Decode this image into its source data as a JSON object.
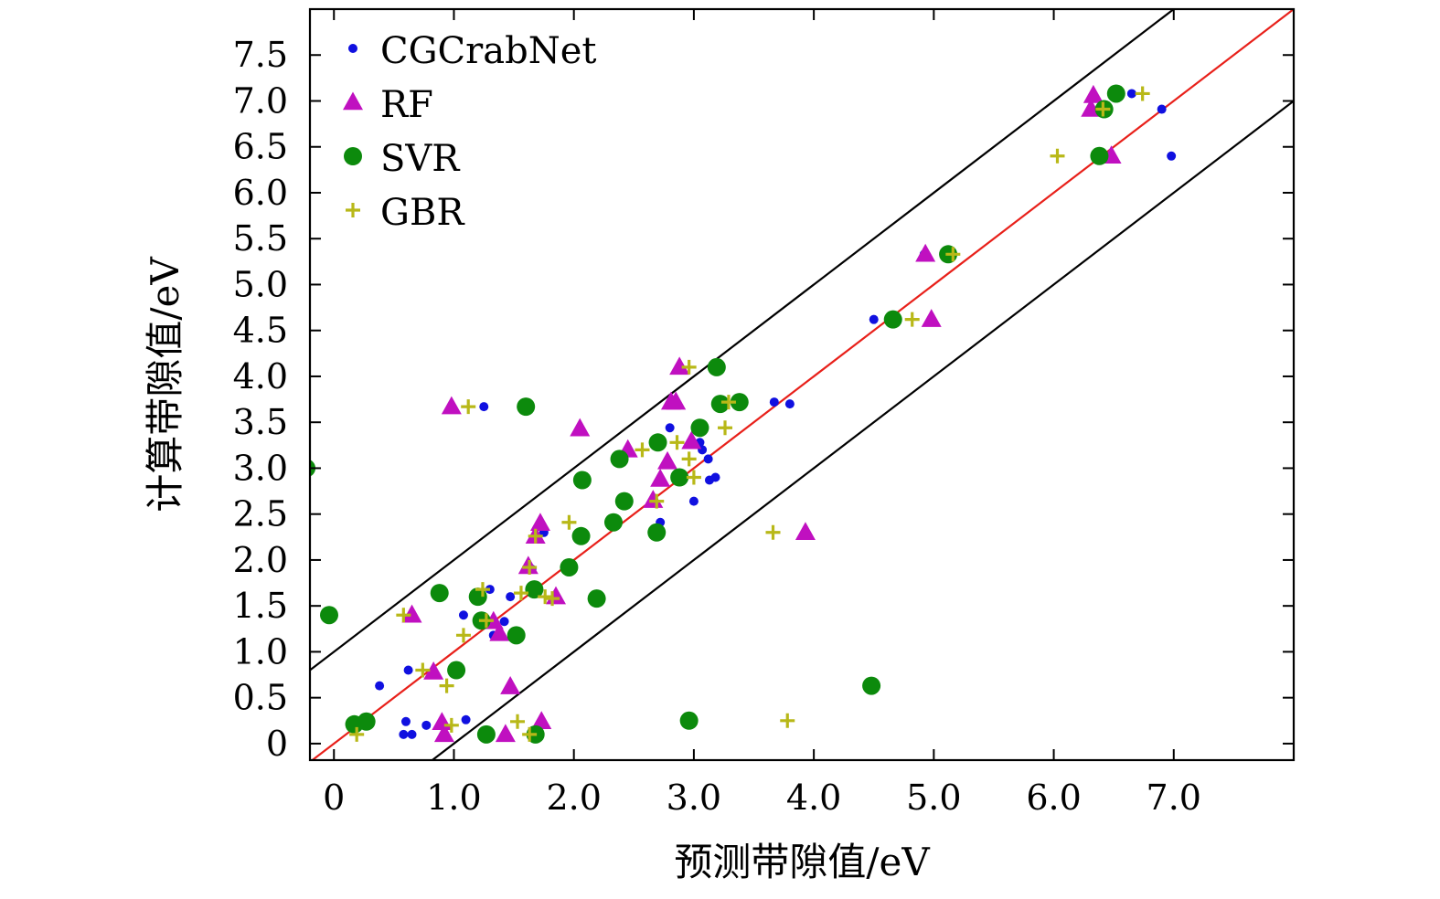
{
  "chart_data": {
    "type": "scatter",
    "title": "",
    "xlabel": "预测带隙值/eV",
    "ylabel": "计算带隙值/eV",
    "xlim": [
      -0.2,
      8.0
    ],
    "ylim": [
      -0.18,
      8.0
    ],
    "xticks": [
      0,
      1.0,
      2.0,
      3.0,
      4.0,
      5.0,
      6.0,
      7.0
    ],
    "xtick_labels": [
      "0",
      "1.0",
      "2.0",
      "3.0",
      "4.0",
      "5.0",
      "6.0",
      "7.0"
    ],
    "yticks": [
      0,
      0.5,
      1.0,
      1.5,
      2.0,
      2.5,
      3.0,
      3.5,
      4.0,
      4.5,
      5.0,
      5.5,
      6.0,
      6.5,
      7.0,
      7.5
    ],
    "ytick_labels": [
      "0",
      "0.5",
      "1.0",
      "1.5",
      "2.0",
      "2.5",
      "3.0",
      "3.5",
      "4.0",
      "4.5",
      "5.0",
      "5.5",
      "6.0",
      "6.5",
      "7.0",
      "7.5"
    ],
    "grid": false,
    "legend_position": "top-left",
    "reference_lines": [
      {
        "slope": 1,
        "intercept": 0,
        "color": "#e8201a"
      },
      {
        "slope": 1,
        "intercept": 1.0,
        "color": "#000000"
      },
      {
        "slope": 1,
        "intercept": -1.0,
        "color": "#000000"
      }
    ],
    "series": [
      {
        "name": "CGCrabNet",
        "marker": "dot",
        "color": "#1010e0",
        "x": [
          0.38,
          0.62,
          0.6,
          0.58,
          0.65,
          0.77,
          1.1,
          1.08,
          1.25,
          1.3,
          1.33,
          1.42,
          1.47,
          1.65,
          1.7,
          1.75,
          2.72,
          2.8,
          3.0,
          3.05,
          3.07,
          3.12,
          3.13,
          3.18,
          3.67,
          3.8,
          4.5,
          4.92,
          6.65,
          6.9,
          6.98
        ],
        "y": [
          0.63,
          0.8,
          0.24,
          0.1,
          0.1,
          0.2,
          0.26,
          1.4,
          3.67,
          1.68,
          1.18,
          1.33,
          1.6,
          1.9,
          1.65,
          2.3,
          2.41,
          3.44,
          2.64,
          3.28,
          3.2,
          3.1,
          2.87,
          2.9,
          3.72,
          3.7,
          4.62,
          5.33,
          7.08,
          6.91,
          6.4
        ]
      },
      {
        "name": "RF",
        "marker": "triangle",
        "color": "#c010c0",
        "x": [
          0.65,
          0.83,
          0.9,
          0.92,
          0.98,
          1.33,
          1.38,
          1.43,
          1.47,
          1.62,
          1.68,
          1.72,
          1.73,
          1.85,
          2.05,
          2.45,
          2.66,
          2.72,
          2.78,
          2.81,
          2.85,
          2.88,
          2.98,
          3.93,
          4.93,
          4.98,
          6.31,
          6.33,
          6.48
        ],
        "y": [
          1.4,
          0.78,
          0.23,
          0.1,
          3.67,
          1.33,
          1.2,
          0.1,
          0.62,
          1.93,
          2.26,
          2.4,
          0.24,
          1.6,
          3.43,
          3.2,
          2.65,
          2.88,
          3.07,
          3.72,
          3.72,
          4.1,
          3.29,
          2.3,
          5.33,
          4.62,
          6.91,
          7.06,
          6.4
        ],
        "size": "large"
      },
      {
        "name": "SVR",
        "marker": "circle",
        "color": "#0c8a0c",
        "x": [
          -0.23,
          -0.04,
          0.17,
          0.27,
          0.88,
          1.02,
          1.2,
          1.23,
          1.27,
          1.52,
          1.6,
          1.67,
          1.68,
          1.96,
          2.06,
          2.07,
          2.19,
          2.33,
          2.38,
          2.42,
          2.69,
          2.7,
          2.88,
          2.96,
          3.05,
          3.19,
          3.22,
          3.38,
          4.48,
          4.66,
          5.12,
          6.38,
          6.42,
          6.52
        ],
        "y": [
          3.0,
          1.4,
          0.21,
          0.24,
          1.64,
          0.8,
          1.6,
          1.34,
          0.1,
          1.18,
          3.67,
          1.68,
          0.1,
          1.92,
          2.26,
          2.87,
          1.58,
          2.41,
          3.1,
          2.64,
          2.3,
          3.28,
          2.9,
          0.25,
          3.44,
          4.1,
          3.7,
          3.72,
          0.63,
          4.62,
          5.33,
          6.4,
          6.91,
          7.08
        ]
      },
      {
        "name": "GBR",
        "marker": "plus",
        "color": "#b8b818",
        "x": [
          0.19,
          0.58,
          0.74,
          0.94,
          0.98,
          1.08,
          1.12,
          1.24,
          1.27,
          1.53,
          1.56,
          1.63,
          1.63,
          1.68,
          1.76,
          1.82,
          1.96,
          2.57,
          2.69,
          2.86,
          2.96,
          2.96,
          3.0,
          3.26,
          3.29,
          3.66,
          3.78,
          4.82,
          5.16,
          6.03,
          6.41,
          6.74
        ],
        "y": [
          0.1,
          1.4,
          0.8,
          0.63,
          0.2,
          1.18,
          3.67,
          1.68,
          1.34,
          0.24,
          1.64,
          0.1,
          1.92,
          2.26,
          1.6,
          1.58,
          2.41,
          3.2,
          2.64,
          3.28,
          4.1,
          3.1,
          2.9,
          3.44,
          3.72,
          2.3,
          0.25,
          4.62,
          5.33,
          6.4,
          6.91,
          7.08
        ]
      }
    ]
  }
}
